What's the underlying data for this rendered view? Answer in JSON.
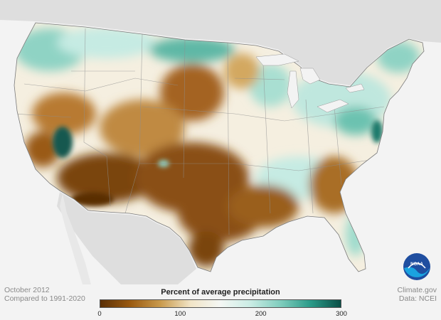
{
  "map": {
    "title": "Percent of average precipitation",
    "period": "October 2012",
    "baseline": "Compared to 1991-2020",
    "credit_site": "Climate.gov",
    "credit_data": "Data: NCEI",
    "logo_text": "NOAA"
  },
  "legend": {
    "min": 0,
    "max": 300,
    "ticks": [
      {
        "label": "0",
        "value": 0
      },
      {
        "label": "100",
        "value": 100
      },
      {
        "label": "200",
        "value": 200
      },
      {
        "label": "300",
        "value": 300
      }
    ],
    "colors": [
      "#5a2f06",
      "#9a5a10",
      "#c99a4c",
      "#f1e4c6",
      "#f4f7f4",
      "#c9ece4",
      "#7fcdbd",
      "#2a9a88",
      "#0a4f46"
    ]
  },
  "colors": {
    "land_background": "#dedede",
    "ocean": "#f3f3f3",
    "very_dry": "#6b3a0a",
    "dry": "#a9681c",
    "near_normal": "#f7f1e3",
    "wet": "#9fdccd",
    "very_wet": "#17655a"
  }
}
